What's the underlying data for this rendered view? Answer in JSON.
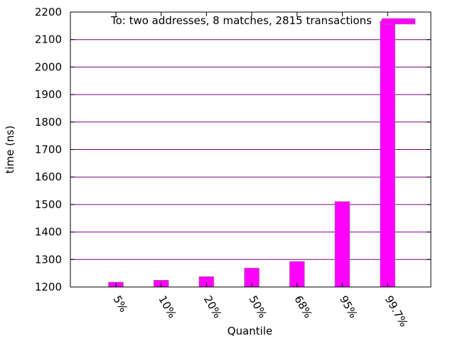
{
  "chart_data": {
    "type": "bar",
    "title": "",
    "xlabel": "Quantile",
    "ylabel": "time (ns)",
    "ylim": [
      1200,
      2200
    ],
    "yticks": [
      1200,
      1300,
      1400,
      1500,
      1600,
      1700,
      1800,
      1900,
      2000,
      2100,
      2200
    ],
    "grid": "horizontal",
    "legend": {
      "position": "top-right",
      "entries": [
        "To: two addresses, 8 matches, 2815 transactions"
      ]
    },
    "categories": [
      "5%",
      "10%",
      "20%",
      "50%",
      "68%",
      "95%",
      "99.7%"
    ],
    "series": [
      {
        "name": "To: two addresses, 8 matches, 2815 transactions",
        "values": [
          1218,
          1225,
          1238,
          1269,
          1293,
          1511,
          2168
        ],
        "color": "#ff00ff"
      }
    ]
  },
  "colors": {
    "bar_fill": "#ff00ff",
    "bar_edge": "#8c8c8c",
    "grid": "#800080",
    "axis": "#000000",
    "background": "#ffffff"
  }
}
